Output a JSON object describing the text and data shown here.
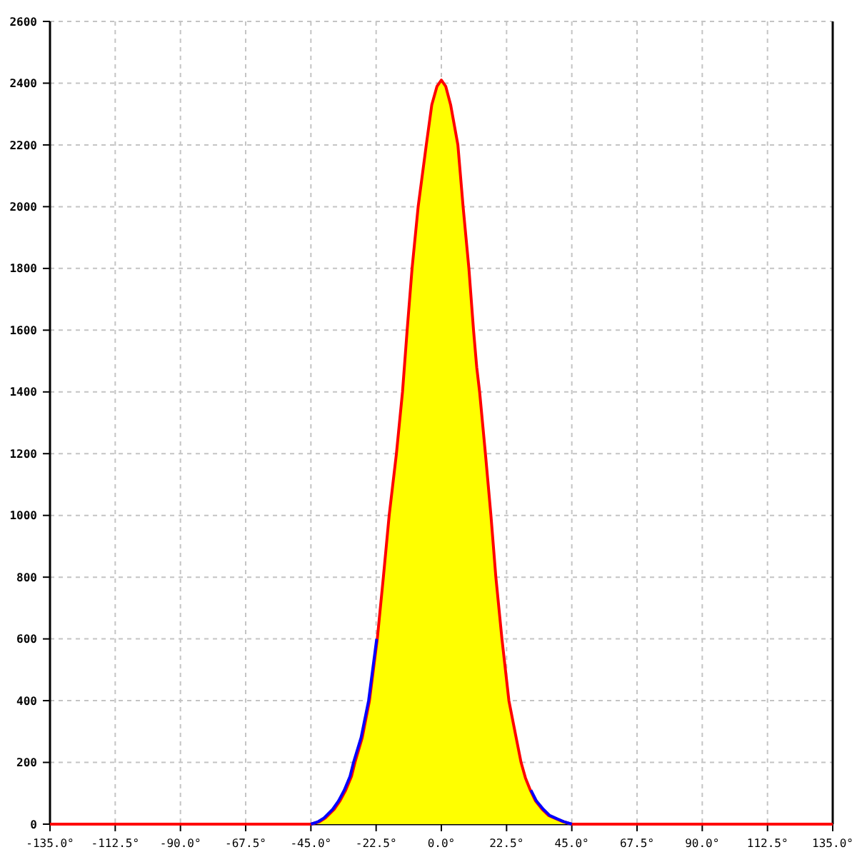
{
  "chart_data": {
    "type": "line",
    "xlim": [
      -135,
      135
    ],
    "xticks": [
      {
        "value": -135,
        "label": "-135.0°"
      },
      {
        "value": -112.5,
        "label": "-112.5°"
      },
      {
        "value": -90,
        "label": "-90.0°"
      },
      {
        "value": -67.5,
        "label": "-67.5°"
      },
      {
        "value": -45,
        "label": "-45.0°"
      },
      {
        "value": -22.5,
        "label": "-22.5°"
      },
      {
        "value": 0,
        "label": "0.0°"
      },
      {
        "value": 22.5,
        "label": "22.5°"
      },
      {
        "value": 45,
        "label": "45.0°"
      },
      {
        "value": 67.5,
        "label": "67.5°"
      },
      {
        "value": 90,
        "label": "90.0°"
      },
      {
        "value": 112.5,
        "label": "112.5°"
      },
      {
        "value": 135,
        "label": "135.0°"
      }
    ],
    "ylim": [
      0,
      2600
    ],
    "yticks": [
      0,
      200,
      400,
      600,
      800,
      1000,
      1200,
      1400,
      1600,
      1800,
      2000,
      2200,
      2400,
      2600
    ],
    "grid": true,
    "series": [
      {
        "type": "area",
        "color": "#ffff00",
        "x": [
          -45,
          -42,
          -40,
          -37,
          -35,
          -33,
          -31,
          -29.8,
          -27.3,
          -24.8,
          -22.1,
          -20,
          -18,
          -15.5,
          -13.4,
          -11.8,
          -10.1,
          -8,
          -5.2,
          -3.3,
          -1.5,
          0,
          1.5,
          3.2,
          5.7,
          7.5,
          9.5,
          11.1,
          12.2,
          13.2,
          15.2,
          17.1,
          18.8,
          20.9,
          23.3,
          25.8,
          27.5,
          29,
          30.7,
          32.5,
          34.8,
          37,
          39.7,
          42,
          45
        ],
        "values": [
          0,
          8,
          20,
          48,
          75,
          110,
          155,
          200,
          280,
          400,
          600,
          800,
          1000,
          1200,
          1400,
          1600,
          1800,
          2000,
          2200,
          2330,
          2390,
          2410,
          2390,
          2330,
          2200,
          2000,
          1800,
          1600,
          1480,
          1400,
          1200,
          1000,
          800,
          600,
          400,
          280,
          200,
          150,
          110,
          75,
          48,
          28,
          17,
          8,
          0
        ]
      },
      {
        "color": "#ff0000",
        "x": [
          -135,
          -45,
          -42,
          -40,
          -37,
          -35,
          -33,
          -31,
          -29.8,
          -27.3,
          -24.8,
          -22.1,
          -20,
          -18,
          -15.5,
          -13.4,
          -11.8,
          -10.1,
          -8,
          -5.2,
          -3.3,
          -1.5,
          0,
          1.5,
          3.2,
          5.7,
          7.5,
          9.5,
          11.1,
          12.2,
          13.2,
          15.2,
          17.1,
          18.8,
          20.9,
          23.3,
          25.8,
          27.5,
          29,
          30.7,
          32.5,
          34.8,
          37,
          39.7,
          42,
          45,
          135
        ],
        "values": [
          0,
          0,
          8,
          20,
          48,
          75,
          110,
          155,
          200,
          280,
          400,
          600,
          800,
          1000,
          1200,
          1400,
          1600,
          1800,
          2000,
          2200,
          2330,
          2390,
          2410,
          2390,
          2330,
          2200,
          2000,
          1800,
          1600,
          1480,
          1400,
          1200,
          1000,
          800,
          600,
          400,
          280,
          200,
          150,
          110,
          75,
          48,
          28,
          17,
          8,
          0,
          0
        ]
      },
      {
        "color": "#0000ff",
        "x": [
          -45,
          -42.5,
          -40.5,
          -37.5,
          -35.5,
          -33.5,
          -31.5,
          -30.3,
          -27.7,
          -25.1,
          -22.3,
          0,
          30.9,
          32.8,
          35.2,
          37.4,
          40,
          42.3,
          45
        ],
        "values": [
          0,
          8,
          20,
          48,
          75,
          110,
          155,
          200,
          280,
          400,
          600,
          null,
          110,
          75,
          48,
          28,
          17,
          8,
          0
        ]
      }
    ]
  }
}
